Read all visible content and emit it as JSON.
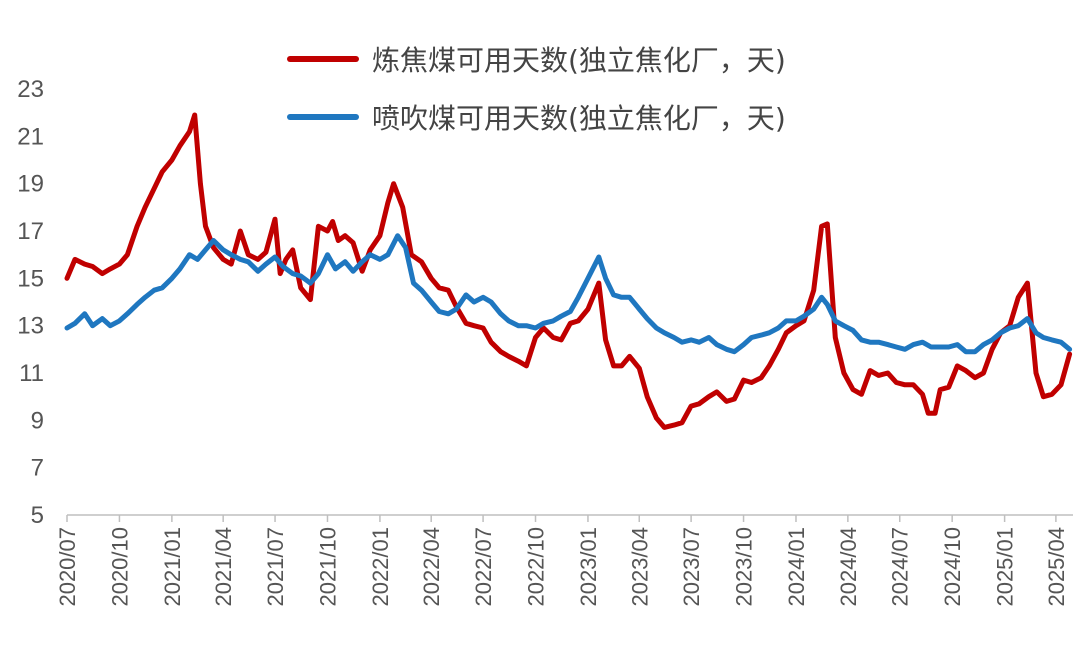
{
  "chart_data": {
    "type": "line",
    "title": "",
    "xlabel": "",
    "ylabel": "",
    "ylim": [
      5,
      23
    ],
    "yticks": [
      5,
      7,
      9,
      11,
      13,
      15,
      17,
      19,
      21,
      23
    ],
    "xticks": [
      "2020/07",
      "2020/10",
      "2021/01",
      "2021/04",
      "2021/07",
      "2021/10",
      "2022/01",
      "2022/04",
      "2022/07",
      "2022/10",
      "2023/01",
      "2023/04",
      "2023/07",
      "2023/10",
      "2024/01",
      "2024/04",
      "2024/07",
      "2024/10",
      "2025/01",
      "2025/04"
    ],
    "grid": false,
    "legend_position": "top-right",
    "series": [
      {
        "name": "炼焦煤可用天数(独立焦化厂，天)",
        "color": "#C00000",
        "points": [
          [
            "2020-07-01",
            15.0
          ],
          [
            "2020-07-15",
            15.8
          ],
          [
            "2020-08-01",
            15.6
          ],
          [
            "2020-08-15",
            15.5
          ],
          [
            "2020-09-01",
            15.2
          ],
          [
            "2020-09-15",
            15.4
          ],
          [
            "2020-10-01",
            15.6
          ],
          [
            "2020-10-15",
            16.0
          ],
          [
            "2020-11-01",
            17.2
          ],
          [
            "2020-11-15",
            18.0
          ],
          [
            "2020-12-01",
            18.8
          ],
          [
            "2020-12-15",
            19.5
          ],
          [
            "2021-01-01",
            20.0
          ],
          [
            "2021-01-15",
            20.6
          ],
          [
            "2021-02-01",
            21.2
          ],
          [
            "2021-02-10",
            21.9
          ],
          [
            "2021-02-20",
            19.0
          ],
          [
            "2021-03-01",
            17.2
          ],
          [
            "2021-03-15",
            16.3
          ],
          [
            "2021-04-01",
            15.8
          ],
          [
            "2021-04-15",
            15.6
          ],
          [
            "2021-05-01",
            17.0
          ],
          [
            "2021-05-15",
            16.0
          ],
          [
            "2021-06-01",
            15.8
          ],
          [
            "2021-06-15",
            16.1
          ],
          [
            "2021-07-01",
            17.5
          ],
          [
            "2021-07-10",
            15.2
          ],
          [
            "2021-07-20",
            15.8
          ],
          [
            "2021-08-01",
            16.2
          ],
          [
            "2021-08-15",
            14.6
          ],
          [
            "2021-09-01",
            14.1
          ],
          [
            "2021-09-15",
            17.2
          ],
          [
            "2021-10-01",
            17.0
          ],
          [
            "2021-10-10",
            17.4
          ],
          [
            "2021-10-20",
            16.6
          ],
          [
            "2021-11-01",
            16.8
          ],
          [
            "2021-11-15",
            16.5
          ],
          [
            "2021-12-01",
            15.3
          ],
          [
            "2021-12-15",
            16.2
          ],
          [
            "2022-01-01",
            16.8
          ],
          [
            "2022-01-15",
            18.2
          ],
          [
            "2022-01-25",
            19.0
          ],
          [
            "2022-02-10",
            18.0
          ],
          [
            "2022-02-25",
            16.0
          ],
          [
            "2022-03-15",
            15.7
          ],
          [
            "2022-04-01",
            15.0
          ],
          [
            "2022-04-15",
            14.6
          ],
          [
            "2022-05-01",
            14.5
          ],
          [
            "2022-05-15",
            13.8
          ],
          [
            "2022-06-01",
            13.1
          ],
          [
            "2022-06-15",
            13.0
          ],
          [
            "2022-07-01",
            12.9
          ],
          [
            "2022-07-15",
            12.3
          ],
          [
            "2022-08-01",
            11.9
          ],
          [
            "2022-08-15",
            11.7
          ],
          [
            "2022-09-01",
            11.5
          ],
          [
            "2022-09-15",
            11.3
          ],
          [
            "2022-10-01",
            12.5
          ],
          [
            "2022-10-15",
            12.9
          ],
          [
            "2022-11-01",
            12.5
          ],
          [
            "2022-11-15",
            12.4
          ],
          [
            "2022-12-01",
            13.1
          ],
          [
            "2022-12-15",
            13.2
          ],
          [
            "2023-01-01",
            13.7
          ],
          [
            "2023-01-20",
            14.8
          ],
          [
            "2023-02-01",
            12.4
          ],
          [
            "2023-02-15",
            11.3
          ],
          [
            "2023-03-01",
            11.3
          ],
          [
            "2023-03-15",
            11.7
          ],
          [
            "2023-04-01",
            11.2
          ],
          [
            "2023-04-15",
            10.0
          ],
          [
            "2023-05-01",
            9.1
          ],
          [
            "2023-05-15",
            8.7
          ],
          [
            "2023-06-01",
            8.8
          ],
          [
            "2023-06-15",
            8.9
          ],
          [
            "2023-07-01",
            9.6
          ],
          [
            "2023-07-15",
            9.7
          ],
          [
            "2023-08-01",
            10.0
          ],
          [
            "2023-08-15",
            10.2
          ],
          [
            "2023-09-01",
            9.8
          ],
          [
            "2023-09-15",
            9.9
          ],
          [
            "2023-10-01",
            10.7
          ],
          [
            "2023-10-15",
            10.6
          ],
          [
            "2023-11-01",
            10.8
          ],
          [
            "2023-11-15",
            11.3
          ],
          [
            "2023-12-01",
            12.0
          ],
          [
            "2023-12-15",
            12.7
          ],
          [
            "2024-01-01",
            13.0
          ],
          [
            "2024-01-15",
            13.2
          ],
          [
            "2024-02-01",
            14.5
          ],
          [
            "2024-02-15",
            17.2
          ],
          [
            "2024-02-25",
            17.3
          ],
          [
            "2024-03-10",
            12.5
          ],
          [
            "2024-03-25",
            11.0
          ],
          [
            "2024-04-10",
            10.3
          ],
          [
            "2024-04-25",
            10.1
          ],
          [
            "2024-05-10",
            11.1
          ],
          [
            "2024-05-25",
            10.9
          ],
          [
            "2024-06-10",
            11.0
          ],
          [
            "2024-06-25",
            10.6
          ],
          [
            "2024-07-10",
            10.5
          ],
          [
            "2024-07-25",
            10.5
          ],
          [
            "2024-08-10",
            10.1
          ],
          [
            "2024-08-20",
            9.3
          ],
          [
            "2024-09-01",
            9.3
          ],
          [
            "2024-09-10",
            10.3
          ],
          [
            "2024-09-25",
            10.4
          ],
          [
            "2024-10-10",
            11.3
          ],
          [
            "2024-10-25",
            11.1
          ],
          [
            "2024-11-10",
            10.8
          ],
          [
            "2024-11-25",
            11.0
          ],
          [
            "2024-12-10",
            12.0
          ],
          [
            "2024-12-25",
            12.7
          ],
          [
            "2025-01-10",
            13.0
          ],
          [
            "2025-01-25",
            14.2
          ],
          [
            "2025-02-10",
            14.8
          ],
          [
            "2025-02-25",
            11.0
          ],
          [
            "2025-03-10",
            10.0
          ],
          [
            "2025-03-25",
            10.1
          ],
          [
            "2025-04-10",
            10.5
          ],
          [
            "2025-04-25",
            11.8
          ]
        ]
      },
      {
        "name": "喷吹煤可用天数(独立焦化厂，天)",
        "color": "#1F77C0",
        "points": [
          [
            "2020-07-01",
            12.9
          ],
          [
            "2020-07-15",
            13.1
          ],
          [
            "2020-08-01",
            13.5
          ],
          [
            "2020-08-15",
            13.0
          ],
          [
            "2020-09-01",
            13.3
          ],
          [
            "2020-09-15",
            13.0
          ],
          [
            "2020-10-01",
            13.2
          ],
          [
            "2020-10-15",
            13.5
          ],
          [
            "2020-11-01",
            13.9
          ],
          [
            "2020-11-15",
            14.2
          ],
          [
            "2020-12-01",
            14.5
          ],
          [
            "2020-12-15",
            14.6
          ],
          [
            "2021-01-01",
            15.0
          ],
          [
            "2021-01-15",
            15.4
          ],
          [
            "2021-02-01",
            16.0
          ],
          [
            "2021-02-15",
            15.8
          ],
          [
            "2021-03-01",
            16.2
          ],
          [
            "2021-03-15",
            16.6
          ],
          [
            "2021-04-01",
            16.2
          ],
          [
            "2021-04-15",
            16.0
          ],
          [
            "2021-05-01",
            15.8
          ],
          [
            "2021-05-15",
            15.7
          ],
          [
            "2021-06-01",
            15.3
          ],
          [
            "2021-06-15",
            15.6
          ],
          [
            "2021-07-01",
            15.9
          ],
          [
            "2021-07-15",
            15.5
          ],
          [
            "2021-08-01",
            15.2
          ],
          [
            "2021-08-15",
            15.1
          ],
          [
            "2021-09-01",
            14.8
          ],
          [
            "2021-09-15",
            15.2
          ],
          [
            "2021-10-01",
            16.0
          ],
          [
            "2021-10-15",
            15.4
          ],
          [
            "2021-11-01",
            15.7
          ],
          [
            "2021-11-15",
            15.3
          ],
          [
            "2021-12-01",
            15.7
          ],
          [
            "2021-12-15",
            16.0
          ],
          [
            "2022-01-01",
            15.8
          ],
          [
            "2022-01-15",
            16.0
          ],
          [
            "2022-02-01",
            16.8
          ],
          [
            "2022-02-15",
            16.3
          ],
          [
            "2022-03-01",
            14.8
          ],
          [
            "2022-03-15",
            14.5
          ],
          [
            "2022-04-01",
            14.0
          ],
          [
            "2022-04-15",
            13.6
          ],
          [
            "2022-05-01",
            13.5
          ],
          [
            "2022-05-15",
            13.7
          ],
          [
            "2022-06-01",
            14.3
          ],
          [
            "2022-06-15",
            14.0
          ],
          [
            "2022-07-01",
            14.2
          ],
          [
            "2022-07-15",
            14.0
          ],
          [
            "2022-08-01",
            13.5
          ],
          [
            "2022-08-15",
            13.2
          ],
          [
            "2022-09-01",
            13.0
          ],
          [
            "2022-09-15",
            13.0
          ],
          [
            "2022-10-01",
            12.9
          ],
          [
            "2022-10-15",
            13.1
          ],
          [
            "2022-11-01",
            13.2
          ],
          [
            "2022-11-15",
            13.4
          ],
          [
            "2022-12-01",
            13.6
          ],
          [
            "2022-12-15",
            14.2
          ],
          [
            "2023-01-01",
            15.0
          ],
          [
            "2023-01-20",
            15.9
          ],
          [
            "2023-02-01",
            15.0
          ],
          [
            "2023-02-15",
            14.3
          ],
          [
            "2023-03-01",
            14.2
          ],
          [
            "2023-03-15",
            14.2
          ],
          [
            "2023-04-01",
            13.7
          ],
          [
            "2023-04-15",
            13.3
          ],
          [
            "2023-05-01",
            12.9
          ],
          [
            "2023-05-15",
            12.7
          ],
          [
            "2023-06-01",
            12.5
          ],
          [
            "2023-06-15",
            12.3
          ],
          [
            "2023-07-01",
            12.4
          ],
          [
            "2023-07-15",
            12.3
          ],
          [
            "2023-08-01",
            12.5
          ],
          [
            "2023-08-15",
            12.2
          ],
          [
            "2023-09-01",
            12.0
          ],
          [
            "2023-09-15",
            11.9
          ],
          [
            "2023-10-01",
            12.2
          ],
          [
            "2023-10-15",
            12.5
          ],
          [
            "2023-11-01",
            12.6
          ],
          [
            "2023-11-15",
            12.7
          ],
          [
            "2023-12-01",
            12.9
          ],
          [
            "2023-12-15",
            13.2
          ],
          [
            "2024-01-01",
            13.2
          ],
          [
            "2024-01-15",
            13.4
          ],
          [
            "2024-02-01",
            13.7
          ],
          [
            "2024-02-15",
            14.2
          ],
          [
            "2024-02-25",
            13.9
          ],
          [
            "2024-03-10",
            13.2
          ],
          [
            "2024-03-25",
            13.0
          ],
          [
            "2024-04-10",
            12.8
          ],
          [
            "2024-04-25",
            12.4
          ],
          [
            "2024-05-10",
            12.3
          ],
          [
            "2024-05-25",
            12.3
          ],
          [
            "2024-06-10",
            12.2
          ],
          [
            "2024-06-25",
            12.1
          ],
          [
            "2024-07-10",
            12.0
          ],
          [
            "2024-07-25",
            12.2
          ],
          [
            "2024-08-10",
            12.3
          ],
          [
            "2024-08-25",
            12.1
          ],
          [
            "2024-09-10",
            12.1
          ],
          [
            "2024-09-25",
            12.1
          ],
          [
            "2024-10-10",
            12.2
          ],
          [
            "2024-10-25",
            11.9
          ],
          [
            "2024-11-10",
            11.9
          ],
          [
            "2024-11-25",
            12.2
          ],
          [
            "2024-12-10",
            12.4
          ],
          [
            "2024-12-25",
            12.7
          ],
          [
            "2025-01-10",
            12.9
          ],
          [
            "2025-01-25",
            13.0
          ],
          [
            "2025-02-10",
            13.3
          ],
          [
            "2025-02-25",
            12.7
          ],
          [
            "2025-03-10",
            12.5
          ],
          [
            "2025-03-25",
            12.4
          ],
          [
            "2025-04-10",
            12.3
          ],
          [
            "2025-04-25",
            12.0
          ]
        ]
      }
    ]
  }
}
